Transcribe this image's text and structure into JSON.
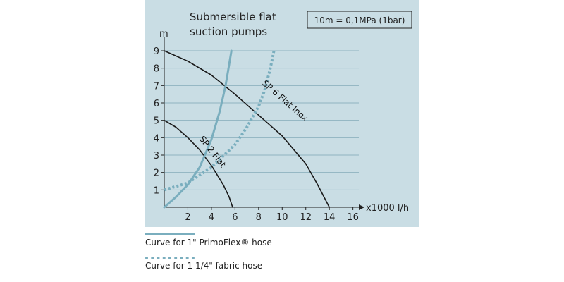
{
  "chart_data": {
    "type": "line",
    "title_lines": [
      "Submersible flat",
      "suction pumps"
    ],
    "unit_box": "10m = 0,1MPa (1bar)",
    "ylabel": "m",
    "xlabel": "x1000 l/h",
    "xlim": [
      0,
      16.5
    ],
    "ylim": [
      0,
      9
    ],
    "x_ticks": [
      2,
      4,
      6,
      8,
      10,
      12,
      14,
      16
    ],
    "y_ticks": [
      1,
      2,
      3,
      4,
      5,
      6,
      7,
      8,
      9
    ],
    "grid": "horizontal",
    "colors": {
      "background": "#c9dde4",
      "grid": "#8fb2bf",
      "pump_curve": "#1a1a1a",
      "primoflex": "#7aaebe",
      "fabric": "#7aaebe"
    },
    "series": [
      {
        "name": "SP 6 Flat Inox",
        "kind": "pump",
        "x": [
          0,
          2,
          4,
          6,
          8,
          10,
          12,
          13,
          14
        ],
        "y": [
          9,
          8.4,
          7.6,
          6.5,
          5.3,
          4.1,
          2.5,
          1.3,
          0
        ]
      },
      {
        "name": "SP 2 Flat",
        "kind": "pump",
        "x": [
          0,
          1,
          2,
          3,
          4,
          5,
          5.5,
          5.8
        ],
        "y": [
          5,
          4.6,
          4,
          3.3,
          2.4,
          1.3,
          0.6,
          0
        ]
      },
      {
        "name": "",
        "kind": "hose-solid",
        "x": [
          0,
          1,
          2,
          3,
          4,
          4.7,
          5.2,
          5.5,
          5.7
        ],
        "y": [
          0,
          0.6,
          1.3,
          2.3,
          3.9,
          5.5,
          7,
          8.2,
          9
        ]
      },
      {
        "name": "",
        "kind": "hose-dotted",
        "x": [
          0,
          2,
          4,
          6,
          7,
          8,
          8.5,
          9,
          9.3
        ],
        "y": [
          1,
          1.4,
          2.3,
          3.6,
          4.6,
          5.8,
          6.7,
          8,
          9
        ]
      }
    ],
    "curve_labels": [
      {
        "text": "SP 6 Flat Inox",
        "x": 10.1,
        "y": 6.0,
        "angle": 41
      },
      {
        "text": "SP 2 Flat",
        "x": 3.9,
        "y": 3.1,
        "angle": 52
      }
    ],
    "legend": [
      {
        "label": "Curve for 1\" PrimoFlex® hose",
        "style": "solid"
      },
      {
        "label": "Curve for 1 1/4\" fabric hose",
        "style": "dotted"
      }
    ]
  }
}
